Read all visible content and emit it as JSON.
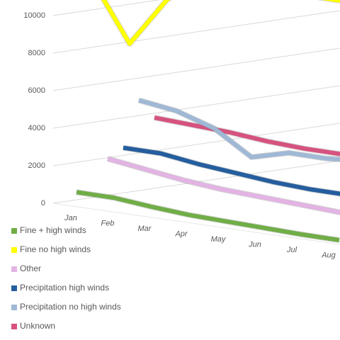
{
  "chart_data": {
    "type": "line3d",
    "categories": [
      "Jan",
      "Feb",
      "Mar",
      "Apr",
      "May",
      "Jun",
      "Jul",
      "Aug"
    ],
    "ylim": [
      0,
      10000
    ],
    "yticks": [
      0,
      2000,
      4000,
      6000,
      8000,
      10000
    ],
    "grid": true,
    "series": [
      {
        "name": "Fine + high winds",
        "color": "#70ad47",
        "values": [
          500,
          500,
          300,
          150,
          100,
          50,
          0,
          0
        ]
      },
      {
        "name": "Fine no high winds",
        "color": "#ffff00",
        "values": [
          13000,
          9500,
          12500,
          14000,
          14000,
          14000,
          14000,
          14000
        ]
      },
      {
        "name": "Other",
        "color": "#e2b3e3",
        "values": [
          2000,
          1700,
          1400,
          1200,
          1100,
          1000,
          900,
          800
        ]
      },
      {
        "name": "Precipitation  high winds",
        "color": "#255e9e",
        "values": [
          2400,
          2400,
          2100,
          1900,
          1700,
          1600,
          1600,
          1200
        ]
      },
      {
        "name": "Precipitation no high winds",
        "color": "#9fb8d6",
        "values": [
          5000,
          4700,
          4000,
          2600,
          3200,
          3200,
          3400,
          3500
        ]
      },
      {
        "name": "Unknown",
        "color": "#d6527f",
        "values": [
          3700,
          3600,
          3500,
          3300,
          3200,
          3200,
          3100,
          3000
        ]
      }
    ]
  }
}
